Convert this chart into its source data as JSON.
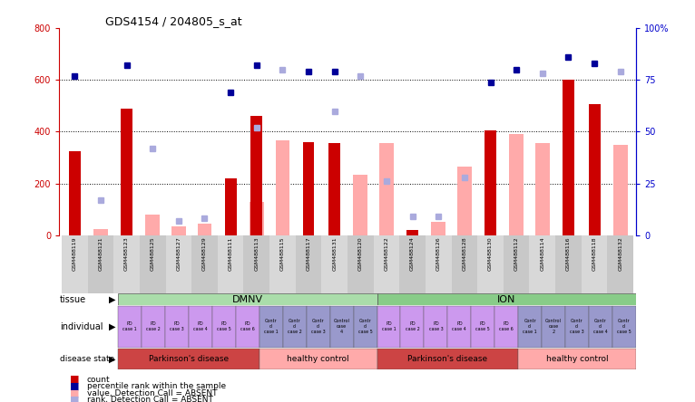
{
  "title": "GDS4154 / 204805_s_at",
  "samples": [
    "GSM488119",
    "GSM488121",
    "GSM488123",
    "GSM488125",
    "GSM488127",
    "GSM488129",
    "GSM488111",
    "GSM488113",
    "GSM488115",
    "GSM488117",
    "GSM488131",
    "GSM488120",
    "GSM488122",
    "GSM488124",
    "GSM488126",
    "GSM488128",
    "GSM488130",
    "GSM488112",
    "GSM488114",
    "GSM488116",
    "GSM488118",
    "GSM488132"
  ],
  "count_values": [
    325,
    0,
    490,
    0,
    0,
    0,
    220,
    460,
    0,
    360,
    355,
    0,
    0,
    20,
    0,
    0,
    405,
    0,
    0,
    600,
    505,
    0
  ],
  "absent_value_bars": [
    0,
    25,
    0,
    80,
    35,
    45,
    0,
    130,
    365,
    0,
    0,
    235,
    355,
    0,
    50,
    265,
    0,
    390,
    355,
    0,
    0,
    350
  ],
  "rank_dark_blue": [
    77,
    0,
    82,
    0,
    0,
    0,
    69,
    82,
    0,
    79,
    79,
    0,
    0,
    0,
    0,
    0,
    74,
    80,
    0,
    86,
    83,
    0
  ],
  "rank_light_blue": [
    0,
    17,
    0,
    42,
    7,
    8,
    0,
    52,
    80,
    0,
    60,
    77,
    26,
    9,
    9,
    28,
    0,
    0,
    78,
    0,
    0,
    79
  ],
  "ylim_left": [
    0,
    800
  ],
  "ylim_right": [
    0,
    100
  ],
  "yticks_left": [
    0,
    200,
    400,
    600,
    800
  ],
  "yticks_right": [
    0,
    25,
    50,
    75,
    100
  ],
  "ytick_labels_right": [
    "0",
    "25",
    "50",
    "75",
    "100%"
  ],
  "tissue_dmnv_label": "DMNV",
  "tissue_ion_label": "ION",
  "tissue_color": "#aaddaa",
  "individual_labels_short": [
    "PD\ncase 1",
    "PD\ncase 2",
    "PD\ncase 3",
    "PD\ncase 4",
    "PD\ncase 5",
    "PD\ncase 6",
    "Contr\nol\ncase 1",
    "Contr\nol\ncase 2",
    "Contr\nol\ncase 3",
    "Control\ncase\n4",
    "Contr\nol\ncase 5",
    "PD\ncase 1",
    "PD\ncase 2",
    "PD\ncase 3",
    "PD\ncase 4",
    "PD\ncase 5",
    "PD\ncase 6",
    "Contr\nol\ncase 1",
    "Control\ncase\n2",
    "Contr\nol\ncase 3",
    "Contr\nol\ncase 4",
    "Contr\nol\ncase 5"
  ],
  "individual_colors": [
    "#cc99ee",
    "#cc99ee",
    "#cc99ee",
    "#cc99ee",
    "#cc99ee",
    "#cc99ee",
    "#9999cc",
    "#9999cc",
    "#9999cc",
    "#9999cc",
    "#9999cc",
    "#cc99ee",
    "#cc99ee",
    "#cc99ee",
    "#cc99ee",
    "#cc99ee",
    "#cc99ee",
    "#9999cc",
    "#9999cc",
    "#9999cc",
    "#9999cc",
    "#9999cc"
  ],
  "disease_config": [
    {
      "start": 0,
      "end": 5,
      "color": "#cc4444",
      "label": "Parkinson's disease"
    },
    {
      "start": 6,
      "end": 10,
      "color": "#ffaaaa",
      "label": "healthy control"
    },
    {
      "start": 11,
      "end": 16,
      "color": "#cc4444",
      "label": "Parkinson's disease"
    },
    {
      "start": 17,
      "end": 21,
      "color": "#ffaaaa",
      "label": "healthy control"
    }
  ],
  "count_color": "#cc0000",
  "absent_bar_color": "#ffaaaa",
  "rank_dark_color": "#000099",
  "rank_light_color": "#aaaadd",
  "background_color": "#ffffff",
  "tick_color_left": "#cc0000",
  "tick_color_right": "#0000cc"
}
